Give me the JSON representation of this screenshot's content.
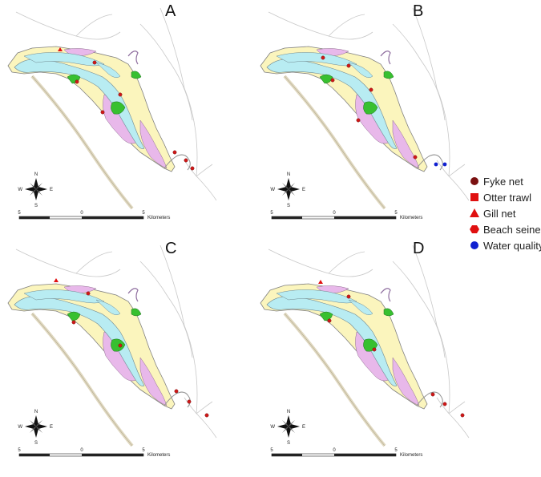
{
  "panels": [
    {
      "label": "A"
    },
    {
      "label": "B"
    },
    {
      "label": "C"
    },
    {
      "label": "D"
    }
  ],
  "compass": {
    "n": "N",
    "s": "S",
    "e": "E",
    "w": "W"
  },
  "scale_bar": {
    "left": "5",
    "mid": "0",
    "right": "5",
    "units": "Kilometers"
  },
  "legend": {
    "items": [
      {
        "label": "Fyke net",
        "symbol": "circle",
        "color": "#7a1010"
      },
      {
        "label": "Otter trawl",
        "symbol": "square",
        "color": "#e01010"
      },
      {
        "label": "Gill net",
        "symbol": "triangle",
        "color": "#e01010"
      },
      {
        "label": "Beach seine",
        "symbol": "hexagon",
        "color": "#e01010"
      },
      {
        "label": "Water quality",
        "symbol": "circle",
        "color": "#1020d0"
      }
    ]
  },
  "colors": {
    "land_yellow": "#fbf5bd",
    "water_cyan": "#b8ecf2",
    "marsh_pink": "#e8b8ea",
    "wetland_green": "#38c030",
    "road_beige": "#e0d8c0",
    "outline_gray": "#909090"
  }
}
